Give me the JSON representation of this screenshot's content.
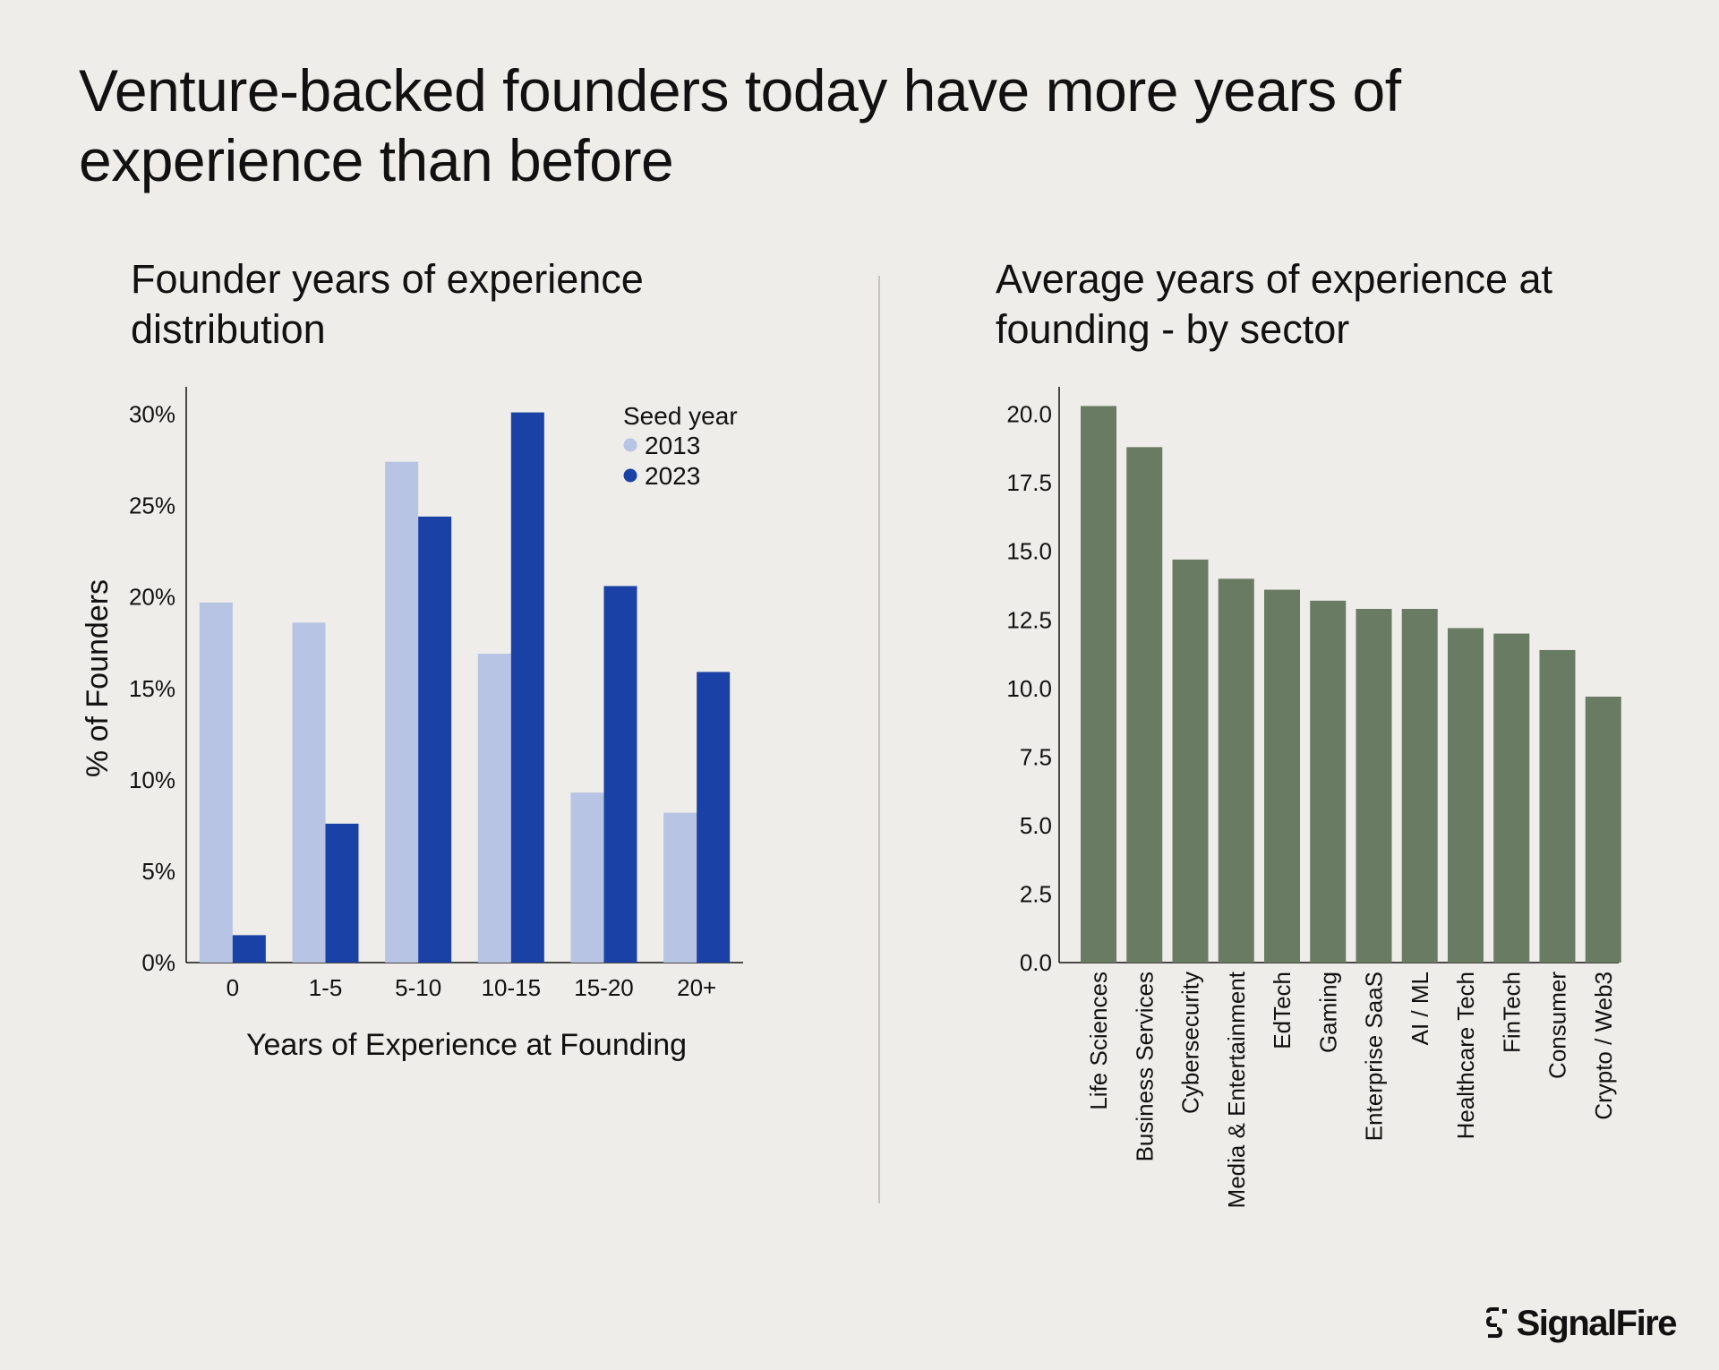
{
  "title": "Venture-backed founders today have more years of experience than before",
  "brand": "SignalFire",
  "colors": {
    "series_2013": "#b8c4e3",
    "series_2023": "#1a42a6",
    "sector_bar": "#6a7b63",
    "background": "#efede9"
  },
  "chart_data": [
    {
      "type": "bar",
      "title": "Founder years of experience distribution",
      "xlabel": "Years of Experience at Founding",
      "ylabel": "% of Founders",
      "categories": [
        "0",
        "1-5",
        "5-10",
        "10-15",
        "15-20",
        "20+"
      ],
      "series": [
        {
          "name": "2013",
          "values": [
            19.7,
            18.6,
            27.4,
            16.9,
            9.3,
            8.2
          ]
        },
        {
          "name": "2023",
          "values": [
            1.5,
            7.6,
            24.4,
            30.1,
            20.6,
            15.9
          ]
        }
      ],
      "legend_title": "Seed year",
      "legend_position": "top-right",
      "ylim": [
        0,
        31.5
      ],
      "yticks": [
        0,
        5,
        10,
        15,
        20,
        25,
        30
      ],
      "ytick_labels": [
        "0%",
        "5%",
        "10%",
        "15%",
        "20%",
        "25%",
        "30%"
      ]
    },
    {
      "type": "bar",
      "title": "Average years of experience at founding - by sector",
      "categories": [
        "Life Sciences",
        "Business Services",
        "Cybersecurity",
        "Media & Entertainment",
        "EdTech",
        "Gaming",
        "Enterprise SaaS",
        "AI / ML",
        "Healthcare Tech",
        "FinTech",
        "Consumer",
        "Crypto / Web3"
      ],
      "values": [
        20.3,
        18.8,
        14.7,
        14.0,
        13.6,
        13.2,
        12.9,
        12.9,
        12.2,
        12.0,
        11.4,
        9.7
      ],
      "ylim": [
        0,
        21
      ],
      "yticks": [
        0,
        2.5,
        5,
        7.5,
        10,
        12.5,
        15,
        17.5,
        20
      ],
      "ytick_labels": [
        "0.0",
        "2.5",
        "5.0",
        "7.5",
        "10.0",
        "12.5",
        "15.0",
        "17.5",
        "20.0"
      ]
    }
  ]
}
